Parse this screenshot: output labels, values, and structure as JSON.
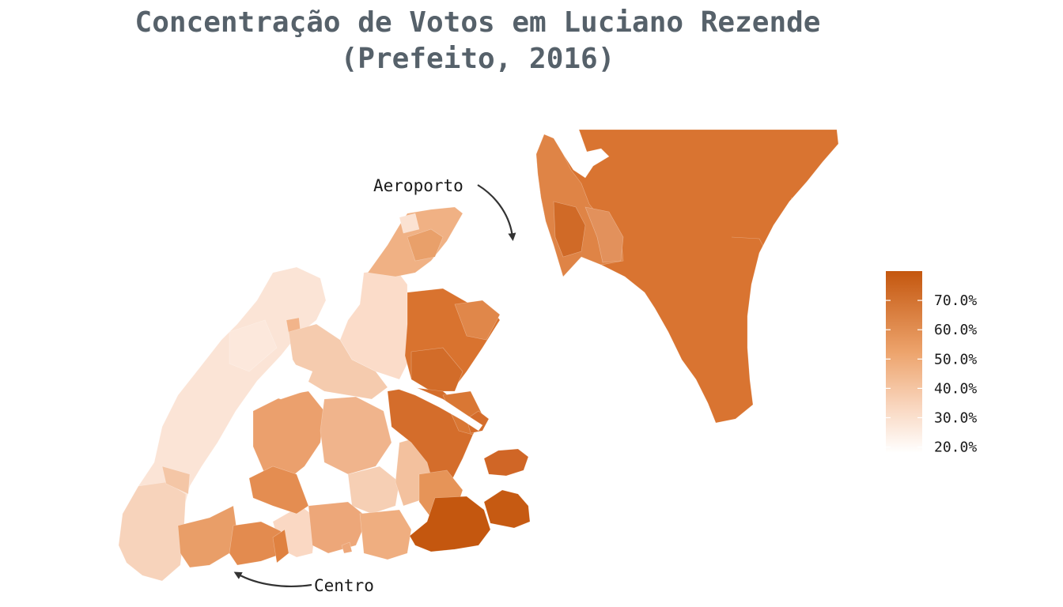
{
  "title": {
    "line1": "Concentração de Votos em Luciano Rezende",
    "line2": "(Prefeito, 2016)"
  },
  "annotations": {
    "airport": "Aeroporto",
    "center": "Centro"
  },
  "legend": {
    "min": 0.18,
    "max": 0.8,
    "color_low": "#ffffff",
    "color_high": "#c4570f",
    "ticks": [
      {
        "value": 0.7,
        "label": "70.0%"
      },
      {
        "value": 0.6,
        "label": "60.0%"
      },
      {
        "value": 0.5,
        "label": "50.0%"
      },
      {
        "value": 0.4,
        "label": "40.0%"
      },
      {
        "value": 0.3,
        "label": "30.0%"
      },
      {
        "value": 0.2,
        "label": "20.0%"
      }
    ]
  },
  "colors": {
    "title": "#56616a",
    "north_region": "#d97431",
    "darkest": "#c4570f"
  }
}
